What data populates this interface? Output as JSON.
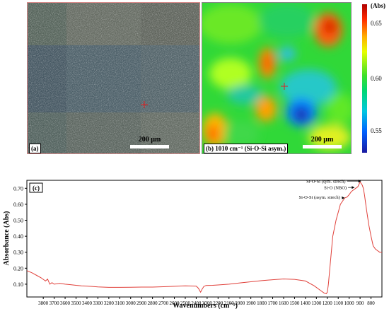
{
  "panel_a": {
    "tag": "(a)",
    "scale_label": "200 µm"
  },
  "panel_b": {
    "tag": "(b) 1010 cm⁻¹ (Si-O-Si asym.)",
    "scale_label": "200 µm",
    "colorbar": {
      "unit": "(Abs)",
      "ticks": [
        "0.65",
        "0.60",
        "0.55"
      ]
    }
  },
  "chart_data": {
    "type": "line",
    "panel_tag": "(c)",
    "xlabel": "Wavenumbers (cm⁻¹)",
    "ylabel": "Absorbance (Abs)",
    "xlim": [
      3950,
      700
    ],
    "ylim": [
      0.02,
      0.75
    ],
    "x_ticks": [
      3800,
      3700,
      3600,
      3500,
      3400,
      3300,
      3200,
      3100,
      3000,
      2900,
      2800,
      2700,
      2600,
      2500,
      2400,
      2300,
      2200,
      2100,
      2000,
      1900,
      1800,
      1700,
      1600,
      1500,
      1400,
      1300,
      1200,
      1100,
      1000,
      900,
      800
    ],
    "y_ticks": [
      "0.10",
      "0.20",
      "0.30",
      "0.40",
      "0.50",
      "0.60",
      "0.70"
    ],
    "color": "#e0403a",
    "series": [
      {
        "x": [
          3950,
          3900,
          3860,
          3820,
          3800,
          3780,
          3760,
          3740,
          3720,
          3700,
          3650,
          3600,
          3550,
          3500,
          3450,
          3400,
          3300,
          3200,
          3100,
          3000,
          2900,
          2800,
          2700,
          2600,
          2500,
          2400,
          2380,
          2360,
          2345,
          2330,
          2310,
          2250,
          2200,
          2100,
          2000,
          1900,
          1800,
          1700,
          1600,
          1500,
          1400,
          1320,
          1260,
          1230,
          1210,
          1200,
          1190,
          1170,
          1150,
          1120,
          1100,
          1080,
          1060,
          1040,
          1020,
          1000,
          980,
          960,
          940,
          920,
          900,
          880,
          870,
          860,
          840,
          820,
          800,
          780,
          760,
          740,
          720,
          700
        ],
        "y": [
          0.185,
          0.17,
          0.155,
          0.14,
          0.13,
          0.12,
          0.132,
          0.1,
          0.11,
          0.1,
          0.105,
          0.1,
          0.097,
          0.093,
          0.09,
          0.088,
          0.083,
          0.08,
          0.08,
          0.081,
          0.082,
          0.082,
          0.084,
          0.087,
          0.09,
          0.088,
          0.075,
          0.05,
          0.07,
          0.086,
          0.092,
          0.093,
          0.095,
          0.1,
          0.108,
          0.115,
          0.122,
          0.128,
          0.133,
          0.13,
          0.12,
          0.09,
          0.06,
          0.045,
          0.04,
          0.05,
          0.1,
          0.25,
          0.4,
          0.5,
          0.55,
          0.6,
          0.62,
          0.64,
          0.645,
          0.66,
          0.68,
          0.69,
          0.7,
          0.71,
          0.74,
          0.72,
          0.7,
          0.66,
          0.56,
          0.47,
          0.4,
          0.34,
          0.32,
          0.31,
          0.3,
          0.3
        ]
      }
    ],
    "annotations": [
      {
        "text": "Si-O-Si (sym. strech)",
        "x": 890,
        "y": 0.745,
        "tx": 1020,
        "ty": 0.745
      },
      {
        "text": "Si-O (NBO)",
        "x": 950,
        "y": 0.705,
        "tx": 1010,
        "ty": 0.705
      },
      {
        "text": "Si-O-Si (asym. strech)",
        "x": 1040,
        "y": 0.64,
        "tx": 1070,
        "ty": 0.645
      }
    ]
  }
}
